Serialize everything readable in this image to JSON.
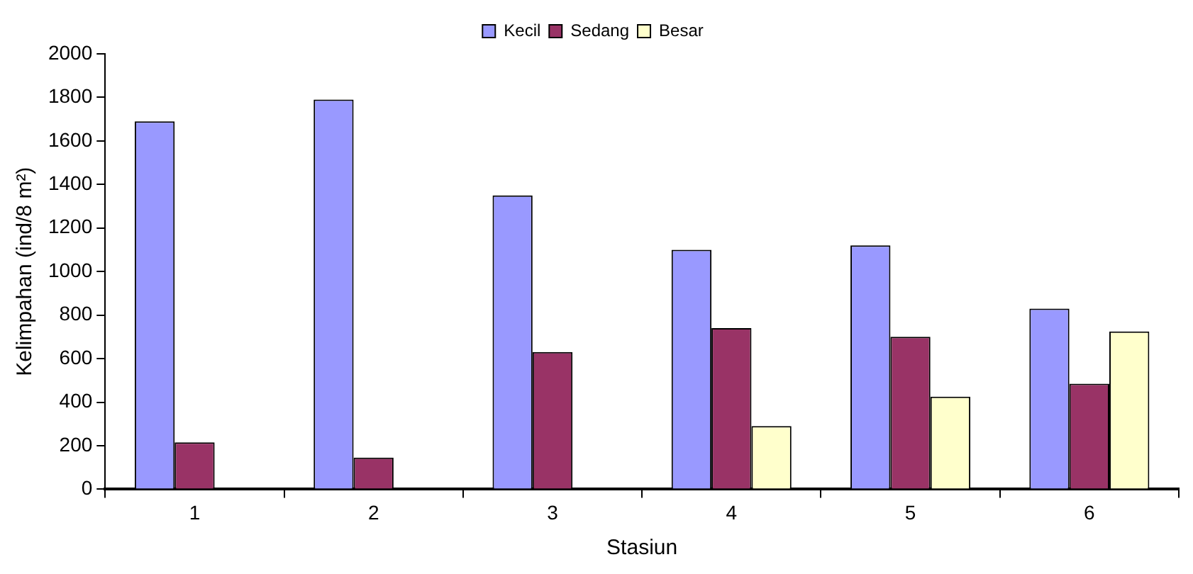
{
  "chart_data": {
    "type": "bar",
    "xlabel": "Stasiun",
    "ylabel": "Kelimpahan (ind/8 m²)",
    "categories": [
      "1",
      "2",
      "3",
      "4",
      "5",
      "6"
    ],
    "series": [
      {
        "name": "Kecil",
        "color": "#9999ff",
        "values": [
          1690,
          1790,
          1350,
          1100,
          1120,
          830
        ]
      },
      {
        "name": "Sedang",
        "color": "#993366",
        "values": [
          215,
          145,
          630,
          740,
          700,
          485
        ]
      },
      {
        "name": "Besar",
        "color": "#ffffcc",
        "values": [
          null,
          null,
          null,
          290,
          425,
          725
        ]
      }
    ],
    "ylim": [
      0,
      2000
    ],
    "yticks": [
      0,
      200,
      400,
      600,
      800,
      1000,
      1200,
      1400,
      1600,
      1800,
      2000
    ],
    "grid": false,
    "legend": "top"
  }
}
